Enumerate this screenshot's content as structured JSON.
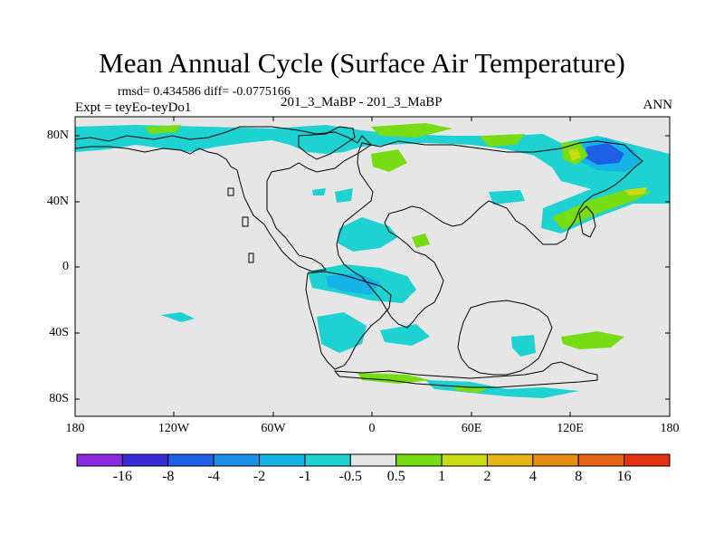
{
  "title": "Mean Annual Cycle (Surface Air Temperature)",
  "stats": "rmsd= 0.434586 diff= -0.0775166",
  "expt": "Expt = teyEo-teyDo1",
  "center_label": "201_3_MaBP - 201_3_MaBP",
  "season": "ANN",
  "lat_labels": [
    "80N",
    "40N",
    "0",
    "40S",
    "80S"
  ],
  "lon_labels": [
    "180",
    "120W",
    "60W",
    "0",
    "60E",
    "120E",
    "180"
  ],
  "colorbar": {
    "colors": [
      "#8a2be2",
      "#3a2bd8",
      "#1e5fe6",
      "#1e8fe6",
      "#14b4e6",
      "#1ed2d2",
      "#e6e6e6",
      "#78dc14",
      "#c8dc14",
      "#e6b414",
      "#e68c14",
      "#e66414",
      "#e63214"
    ],
    "labels": [
      "-16",
      "-8",
      "-4",
      "-2",
      "-1",
      "-0.5",
      "0.5",
      "1",
      "2",
      "4",
      "8",
      "16"
    ]
  },
  "colors": {
    "land_background": "#e6e6e6",
    "cyan": "#1ed2d2",
    "sky": "#14b4e6",
    "blue": "#1e8fe6",
    "deep_blue": "#1e5fe6",
    "green": "#78dc14",
    "yellow_green": "#c8dc14",
    "orange": "#e6b414"
  }
}
